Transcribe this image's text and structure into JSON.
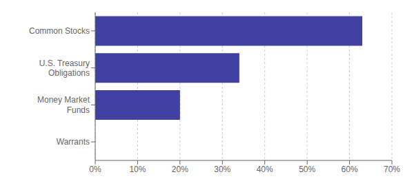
{
  "chart_data": {
    "type": "bar",
    "orientation": "horizontal",
    "categories": [
      "Common Stocks",
      "U.S. Treasury\nObligations",
      "Money Market\nFunds",
      "Warrants"
    ],
    "values": [
      63.0,
      34.0,
      20.0,
      0.0
    ],
    "color": "#4040a0",
    "xlim": [
      0,
      70
    ],
    "xticks": [
      {
        "value": 0,
        "label": "0%"
      },
      {
        "value": 10,
        "label": "10%"
      },
      {
        "value": 20,
        "label": "20%"
      },
      {
        "value": 30,
        "label": "30%"
      },
      {
        "value": 40,
        "label": "40%"
      },
      {
        "value": 50,
        "label": "50%"
      },
      {
        "value": 60,
        "label": "60%"
      },
      {
        "value": 70,
        "label": "70%"
      }
    ],
    "grid": true
  }
}
